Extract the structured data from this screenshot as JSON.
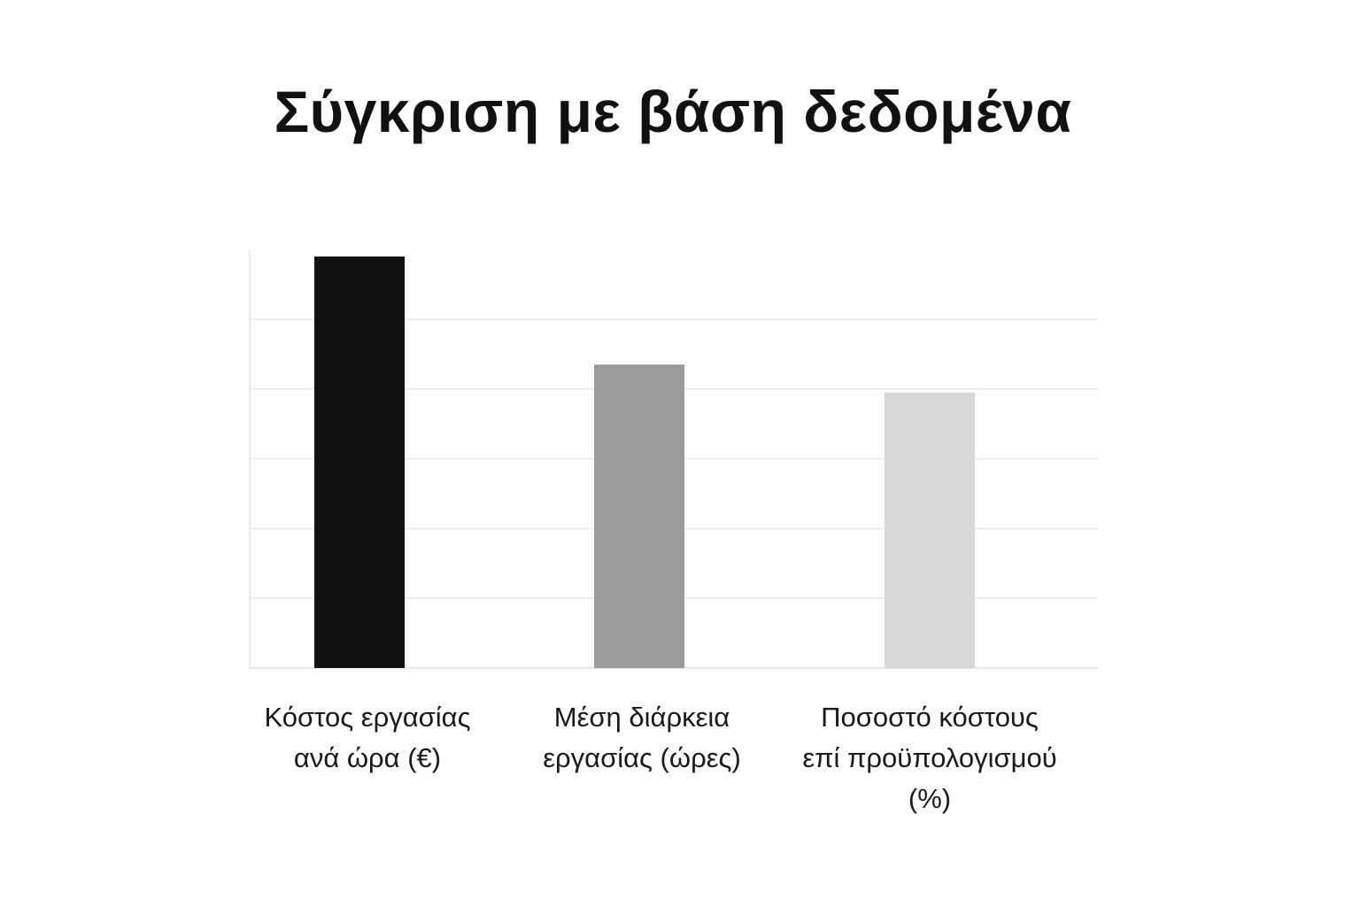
{
  "chart_data": {
    "type": "bar",
    "title": "Σύγκριση με βάση δεδομένα",
    "categories": [
      "Κόστος εργασίας\nανά ώρα (€)",
      "Μέση διάρκεια\nεργασίας (ώρες)",
      "Ποσοστό κόστους\nεπί προϋπολογισμού\n(%)"
    ],
    "values": [
      5.9,
      4.35,
      3.95
    ],
    "bar_colors": [
      "#111111",
      "#9b9b9b",
      "#d8d8d8"
    ],
    "ylim": [
      0,
      6
    ],
    "gridlines": 6,
    "grid": true,
    "xlabel": "",
    "ylabel": ""
  }
}
